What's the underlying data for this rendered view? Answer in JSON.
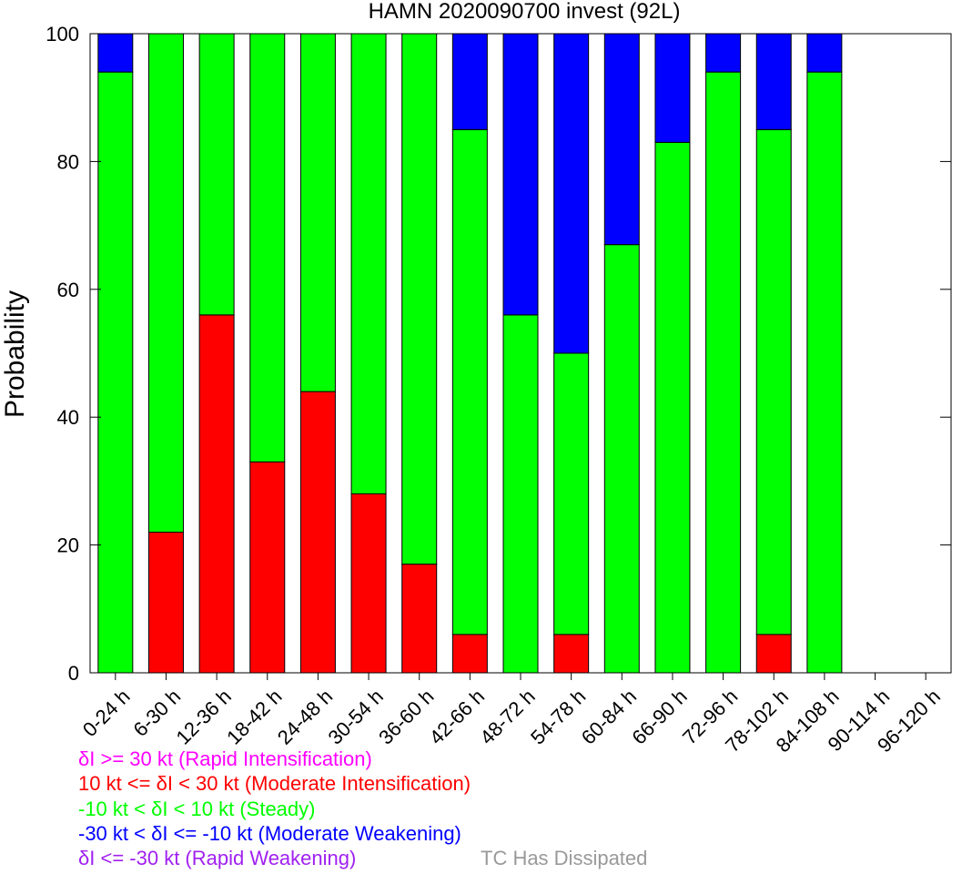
{
  "chart_data": {
    "type": "bar",
    "stacked": true,
    "title": "HAMN 2020090700 invest (92L)",
    "xlabel": "",
    "ylabel": "Probability",
    "ylim": [
      0,
      100
    ],
    "yticks": [
      "0",
      "20",
      "40",
      "60",
      "80",
      "100"
    ],
    "grid": false,
    "categories": [
      "0-24 h",
      "6-30 h",
      "12-36 h",
      "18-42 h",
      "24-48 h",
      "30-54 h",
      "36-60 h",
      "42-66 h",
      "48-72 h",
      "54-78 h",
      "60-84 h",
      "66-90 h",
      "72-96 h",
      "78-102 h",
      "84-108 h",
      "90-114 h",
      "96-120 h"
    ],
    "series": [
      {
        "name": "Rapid Intensification",
        "color": "#ff00ff",
        "values": [
          0,
          0,
          0,
          0,
          0,
          0,
          0,
          0,
          0,
          0,
          0,
          0,
          0,
          0,
          0,
          0,
          0
        ]
      },
      {
        "name": "Moderate Intensification",
        "color": "#ff0000",
        "values": [
          0,
          22,
          56,
          33,
          44,
          28,
          17,
          6,
          0,
          6,
          0,
          0,
          0,
          6,
          0,
          0,
          0
        ]
      },
      {
        "name": "Steady",
        "color": "#00ff00",
        "values": [
          94,
          78,
          44,
          67,
          56,
          72,
          83,
          79,
          56,
          44,
          67,
          83,
          94,
          79,
          94,
          0,
          0
        ]
      },
      {
        "name": "Moderate Weakening",
        "color": "#0000ff",
        "values": [
          6,
          0,
          0,
          0,
          0,
          0,
          0,
          15,
          44,
          50,
          33,
          17,
          6,
          15,
          6,
          0,
          0
        ]
      },
      {
        "name": "Rapid Weakening",
        "color": "#a020f0",
        "values": [
          0,
          0,
          0,
          0,
          0,
          0,
          0,
          0,
          0,
          0,
          0,
          0,
          0,
          0,
          0,
          0,
          0
        ]
      }
    ]
  },
  "legend": {
    "lines": [
      {
        "text": "δI >= 30 kt (Rapid Intensification)",
        "color": "#ff00ff"
      },
      {
        "text": "10 kt <= δI < 30 kt (Moderate Intensification)",
        "color": "#ff0000"
      },
      {
        "text": "-10 kt < δI < 10 kt (Steady)",
        "color": "#00ff00"
      },
      {
        "text": "-30 kt < δI <= -10 kt (Moderate Weakening)",
        "color": "#0000ff"
      },
      {
        "text": "δI <= -30 kt (Rapid Weakening)",
        "color": "#a020f0"
      }
    ],
    "dissipated": {
      "text": "TC Has Dissipated",
      "color": "#999999"
    }
  }
}
